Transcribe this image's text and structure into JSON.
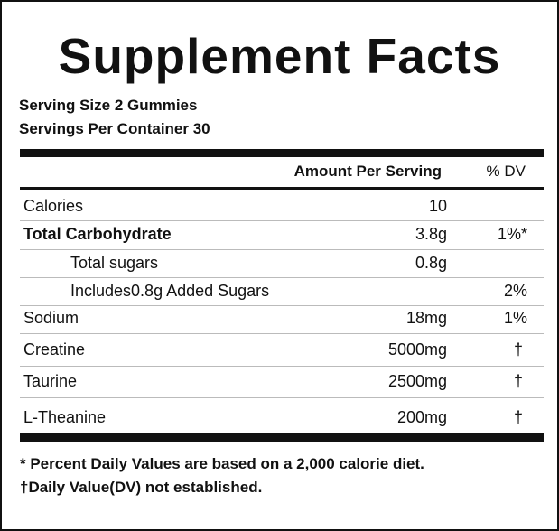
{
  "header": {
    "title": "Supplement Facts"
  },
  "serving": {
    "size": "Serving Size 2 Gummies",
    "per_container": "Servings Per Container 30"
  },
  "table": {
    "columns": [
      "Amount Per Serving",
      "% DV"
    ],
    "rows": [
      {
        "label": "Calories",
        "amount": "10"
      },
      {
        "label": "Total Carbohydrate",
        "amount": "3.8g",
        "dv": "1%*"
      },
      {
        "label": "Total sugars",
        "amount": "0.8g"
      },
      {
        "label": "Includes0.8g Added Sugars",
        "dv": "2%"
      },
      {
        "label": "Sodium",
        "amount": "18mg",
        "dv": "1%"
      },
      {
        "label": "Creatine",
        "amount": "5000mg",
        "dv": "†"
      },
      {
        "label": "Taurine",
        "amount": "2500mg",
        "dv": "†"
      },
      {
        "label": "L-Theanine",
        "amount": "200mg",
        "dv": "†"
      }
    ]
  },
  "footnotes": [
    "* Percent Daily Values are based on a 2,000 calorie diet.",
    "†Daily Value(DV) not established."
  ]
}
